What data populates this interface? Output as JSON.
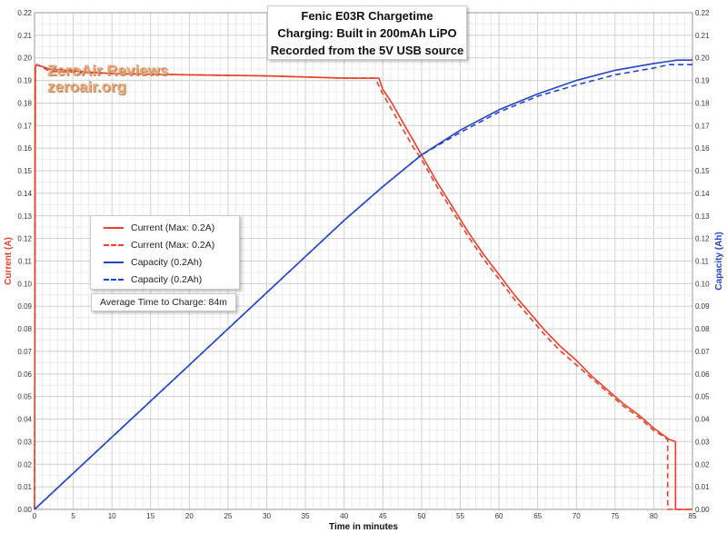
{
  "chart_data": {
    "type": "line",
    "title_lines": [
      "Fenic E03R Chargetime",
      "Charging: Built in 200mAh LiPO",
      "Recorded from the 5V USB source"
    ],
    "xlabel": "Time in minutes",
    "ylabel_left": "Current (A)",
    "ylabel_right": "Capacity (Ah)",
    "xlim": [
      0,
      85
    ],
    "ylim": [
      0,
      0.22
    ],
    "x_ticks": [
      "0",
      "5",
      "10",
      "15",
      "20",
      "25",
      "30",
      "35",
      "40",
      "45",
      "50",
      "55",
      "60",
      "65",
      "70",
      "75",
      "80",
      "85"
    ],
    "y_ticks": [
      "0.00",
      "0.01",
      "0.02",
      "0.03",
      "0.04",
      "0.05",
      "0.06",
      "0.07",
      "0.08",
      "0.09",
      "0.10",
      "0.11",
      "0.12",
      "0.13",
      "0.14",
      "0.15",
      "0.16",
      "0.17",
      "0.18",
      "0.19",
      "0.20",
      "0.21",
      "0.22"
    ],
    "grid": true,
    "legend_position": "middle-left",
    "annotation": "Average Time to Charge: 84m",
    "watermark": [
      "ZeroAir Reviews",
      "zeroair.org"
    ],
    "colors": {
      "current": "#e8412b",
      "capacity": "#2346c8"
    },
    "series": [
      {
        "name": "Current (Max: 0.2A)",
        "axis": "left",
        "style": "solid",
        "color": "#e8412b",
        "x": [
          0,
          0.1,
          0.3,
          2,
          10,
          20,
          30,
          40,
          44.5,
          45,
          46,
          47,
          48,
          49,
          50,
          52,
          54,
          56,
          58,
          60,
          62,
          64,
          66,
          68,
          70,
          72,
          74,
          76,
          78,
          80,
          82,
          82.8,
          82.8,
          85
        ],
        "y": [
          0,
          0.196,
          0.197,
          0.195,
          0.193,
          0.1925,
          0.192,
          0.191,
          0.191,
          0.186,
          0.181,
          0.175,
          0.169,
          0.163,
          0.157,
          0.145,
          0.134,
          0.123,
          0.113,
          0.104,
          0.095,
          0.087,
          0.079,
          0.072,
          0.066,
          0.059,
          0.053,
          0.047,
          0.042,
          0.036,
          0.031,
          0.03,
          0,
          0
        ]
      },
      {
        "name": "Current (Max: 0.2A)",
        "axis": "left",
        "style": "dashed",
        "color": "#e8412b",
        "x": [
          0,
          0.1,
          0.3,
          2,
          10,
          20,
          30,
          40,
          44,
          45,
          46,
          47,
          48,
          49,
          50,
          52,
          54,
          56,
          58,
          60,
          62,
          64,
          66,
          68,
          70,
          72,
          74,
          76,
          78,
          80,
          81.8,
          81.8,
          85
        ],
        "y": [
          0,
          0.197,
          0.197,
          0.194,
          0.193,
          0.1925,
          0.192,
          0.191,
          0.191,
          0.184,
          0.178,
          0.172,
          0.166,
          0.16,
          0.155,
          0.143,
          0.132,
          0.121,
          0.111,
          0.102,
          0.093,
          0.085,
          0.077,
          0.07,
          0.064,
          0.058,
          0.052,
          0.046,
          0.041,
          0.035,
          0.031,
          0,
          0
        ]
      },
      {
        "name": "Capacity (0.2Ah)",
        "axis": "right",
        "style": "solid",
        "color": "#2346c8",
        "x": [
          0,
          10,
          20,
          30,
          40,
          45,
          50,
          55,
          60,
          65,
          70,
          75,
          80,
          82,
          83,
          85
        ],
        "y": [
          0,
          0.032,
          0.064,
          0.096,
          0.128,
          0.143,
          0.157,
          0.168,
          0.177,
          0.184,
          0.19,
          0.1945,
          0.1975,
          0.1985,
          0.199,
          0.199
        ]
      },
      {
        "name": "Capacity (0.2Ah)",
        "axis": "right",
        "style": "dashed",
        "color": "#2346c8",
        "x": [
          0,
          10,
          20,
          30,
          40,
          45,
          50,
          55,
          60,
          65,
          70,
          75,
          80,
          82,
          85
        ],
        "y": [
          0,
          0.032,
          0.064,
          0.096,
          0.128,
          0.143,
          0.157,
          0.167,
          0.176,
          0.183,
          0.188,
          0.1925,
          0.1955,
          0.197,
          0.197
        ]
      }
    ]
  }
}
